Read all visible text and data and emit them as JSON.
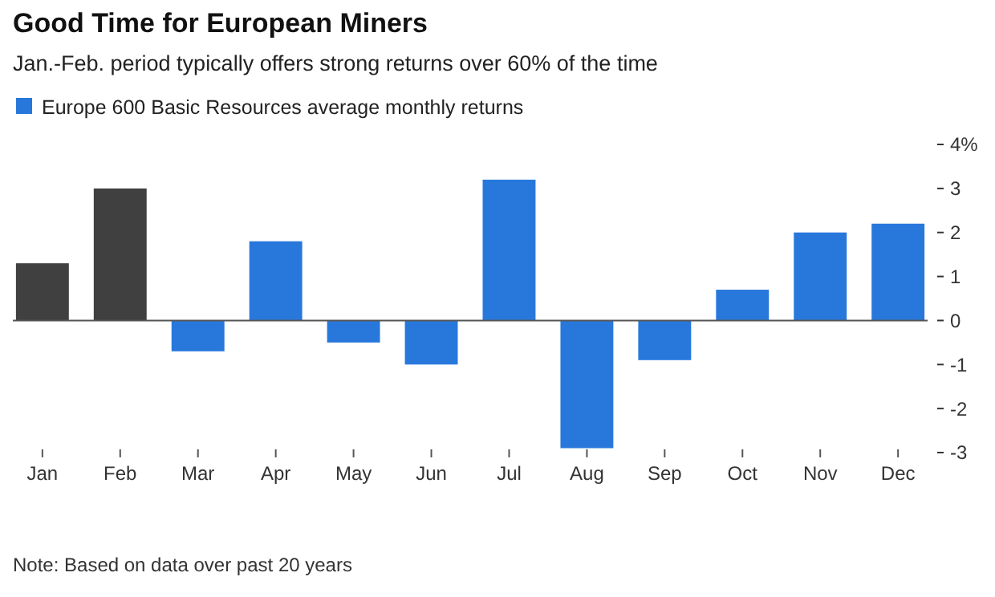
{
  "chart_data": {
    "type": "bar",
    "title": "Good Time for European Miners",
    "subtitle": "Jan.-Feb. period typically offers strong returns over 60% of the time",
    "categories": [
      "Jan",
      "Feb",
      "Mar",
      "Apr",
      "May",
      "Jun",
      "Jul",
      "Aug",
      "Sep",
      "Oct",
      "Nov",
      "Dec"
    ],
    "series": [
      {
        "name": "Europe 600 Basic Resources average monthly returns",
        "color": "#2878dc",
        "colors": [
          "#404040",
          "#404040",
          "#2878dc",
          "#2878dc",
          "#2878dc",
          "#2878dc",
          "#2878dc",
          "#2878dc",
          "#2878dc",
          "#2878dc",
          "#2878dc",
          "#2878dc"
        ],
        "values": [
          1.3,
          3.0,
          -0.7,
          1.8,
          -0.5,
          -1.0,
          3.2,
          -2.9,
          -0.9,
          0.7,
          2.0,
          2.2
        ]
      }
    ],
    "ylim": [
      -3,
      4
    ],
    "yticks": [
      -3,
      -2,
      -1,
      0,
      1,
      2,
      3,
      {
        "value": 4,
        "label": "4%"
      }
    ],
    "legend": "top left",
    "annotations": [
      "Note: Based on data over past 20 years"
    ]
  }
}
